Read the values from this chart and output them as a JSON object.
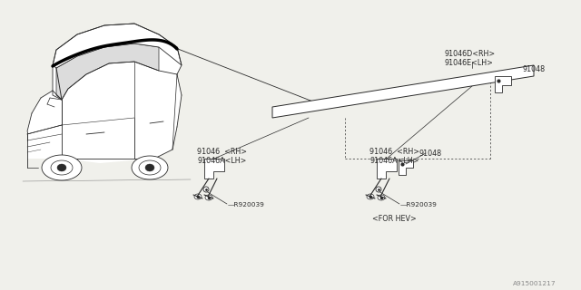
{
  "bg_color": "#f0f0eb",
  "line_color": "#2a2a2a",
  "text_color": "#2a2a2a",
  "font_size": 5.8,
  "watermark": "A915001217",
  "parts": {
    "top_right_1": "91046D<RH>",
    "top_right_2": "91046E<LH>",
    "clip_top": "91048",
    "left_1": "91046  <RH>",
    "left_2": "91046A<LH>",
    "right_1": "91046  <RH>",
    "right_2": "91046A<LH>",
    "clip_right": "91048",
    "screw_left": "R920039",
    "screw_right": "R920039",
    "for_hev": "<FOR HEV>"
  }
}
